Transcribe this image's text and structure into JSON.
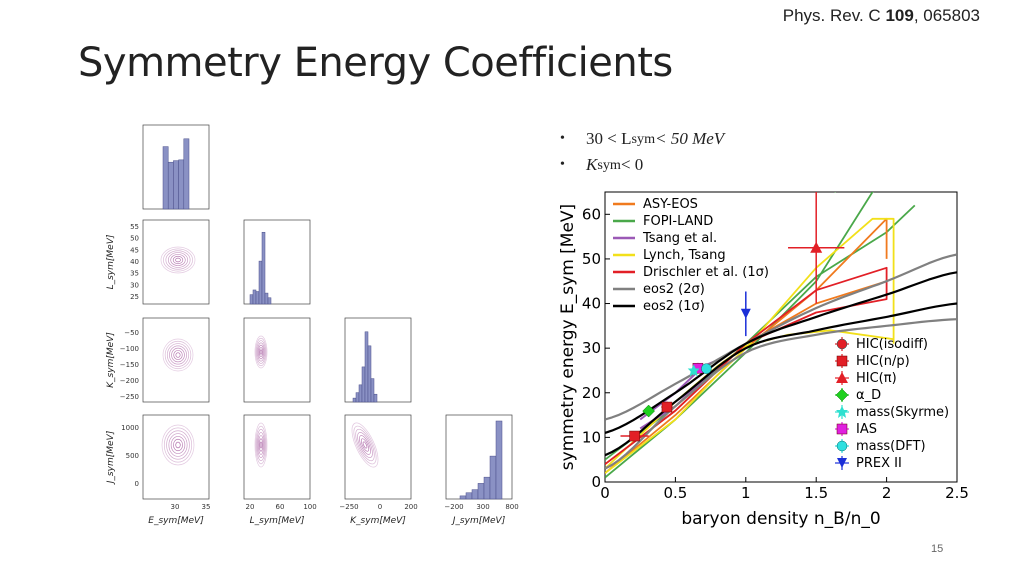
{
  "header": {
    "journal": "Phys. Rev. C",
    "volume": "109",
    "article": ", 065803",
    "title": "Symmetry Energy Coefficients",
    "page_number": "15"
  },
  "bullets": [
    {
      "prefix": "30 <",
      "sym": "L",
      "sub": "sym",
      "suffix": "< 50 MeV"
    },
    {
      "prefix": "",
      "sym": "K",
      "sub": "sym",
      "suffix": " < 0"
    }
  ],
  "corner_plot": {
    "color_fill": "#8a91c4",
    "color_contour": "#a1519a",
    "labels": {
      "esym": "E_sym[MeV]",
      "lsym": "L_sym[MeV]",
      "ksym": "K_sym[MeV]",
      "jsym": "J_sym[MeV]"
    },
    "ticks": {
      "esym_x": [
        "30",
        "35"
      ],
      "lsym_x": [
        "20",
        "60",
        "100"
      ],
      "ksym_x": [
        "−250",
        "0",
        "200"
      ],
      "jsym_x": [
        "−200",
        "300",
        "800"
      ],
      "lsym_y": [
        "55",
        "50",
        "45",
        "40",
        "35",
        "30",
        "25"
      ],
      "ksym_y": [
        "−50",
        "−100",
        "−150",
        "−200",
        "−250"
      ],
      "jsym_y": [
        "1000",
        "500",
        "0"
      ]
    },
    "hist_esym": [
      0.8,
      0.6,
      0.62,
      0.63,
      0.9
    ],
    "hist_lsym": [
      0.12,
      0.18,
      0.16,
      0.55,
      0.92,
      0.14,
      0.08
    ],
    "hist_ksym": [
      0.05,
      0.12,
      0.22,
      0.45,
      0.9,
      0.72,
      0.3,
      0.1
    ],
    "hist_jsym": [
      0.04,
      0.08,
      0.12,
      0.2,
      0.28,
      0.55,
      1.0
    ]
  },
  "chart_data": {
    "type": "line",
    "xlabel": "baryon density n_B/n_0",
    "ylabel": "symmetry energy E_sym [MeV]",
    "xlim": [
      0,
      2.5
    ],
    "ylim": [
      0,
      65
    ],
    "xticks": [
      "0",
      "0.5",
      "1",
      "1.5",
      "2",
      "2.5"
    ],
    "yticks": [
      "0",
      "10",
      "20",
      "30",
      "40",
      "50",
      "60"
    ],
    "legend_lines": [
      {
        "name": "ASY-EOS",
        "color": "#f07a1e"
      },
      {
        "name": "FOPI-LAND",
        "color": "#4aa84a"
      },
      {
        "name": "Tsang et al.",
        "color": "#9b59b6"
      },
      {
        "name": "Lynch, Tsang",
        "color": "#f2e01a"
      },
      {
        "name": "Drischler et al. (1σ)",
        "color": "#e21f26"
      },
      {
        "name": "eos2 (2σ)",
        "color": "#808080"
      },
      {
        "name": "eos2 (1σ)",
        "color": "#000000"
      }
    ],
    "legend_points": [
      {
        "name": "HIC(isodiff)",
        "color": "#e21f26",
        "marker": "circle"
      },
      {
        "name": "HIC(n/p)",
        "color": "#e21f26",
        "marker": "square"
      },
      {
        "name": "HIC(π)",
        "color": "#e21f26",
        "marker": "triangle"
      },
      {
        "name": "α_D",
        "color": "#1fd01f",
        "marker": "diamond"
      },
      {
        "name": "mass(Skyrme)",
        "color": "#2ee0d0",
        "marker": "star"
      },
      {
        "name": "IAS",
        "color": "#e020e0",
        "marker": "square"
      },
      {
        "name": "mass(DFT)",
        "color": "#2ee0e0",
        "marker": "circle"
      },
      {
        "name": "PREX II",
        "color": "#1b2fd8",
        "marker": "down-triangle"
      }
    ],
    "points": [
      {
        "name": "HIC(n/p)",
        "x": 0.21,
        "y": 10.3,
        "xerr": 0.1,
        "yerr": 1.0
      },
      {
        "name": "HIC(n/p)",
        "x": 0.44,
        "y": 16.8,
        "xerr": 0.04,
        "yerr": 1.2
      },
      {
        "name": "α_D",
        "x": 0.31,
        "y": 15.9,
        "xerr": 0.0,
        "yerr": 1.0
      },
      {
        "name": "IAS",
        "x": 0.66,
        "y": 25.5,
        "xerr": 0.04,
        "yerr": 1.2
      },
      {
        "name": "mass(Skyrme)",
        "x": 0.63,
        "y": 25.0,
        "xerr": 0.0,
        "yerr": 1.0
      },
      {
        "name": "mass(DFT)",
        "x": 0.72,
        "y": 25.4,
        "xerr": 0.0,
        "yerr": 1.0
      },
      {
        "name": "PREX II",
        "x": 1.0,
        "y": 37.7,
        "xerr": 0.0,
        "yerr": 5.0
      },
      {
        "name": "HIC(π)",
        "x": 1.5,
        "y": 52.5,
        "xerr": 0.2,
        "yerr": 12.5
      }
    ],
    "bands": [
      {
        "name": "eos2 (2σ) upper",
        "color": "#808080",
        "x": [
          0,
          0.5,
          1,
          1.5,
          2,
          2.5
        ],
        "y": [
          14,
          22,
          31,
          39,
          45,
          51
        ]
      },
      {
        "name": "eos2 (2σ) lower",
        "color": "#808080",
        "x": [
          0,
          0.5,
          1,
          1.5,
          2,
          2.5
        ],
        "y": [
          3,
          17,
          29,
          33,
          35,
          36.5
        ]
      },
      {
        "name": "eos2 (1σ) upper",
        "color": "#000000",
        "x": [
          0,
          0.5,
          1,
          1.5,
          2,
          2.5
        ],
        "y": [
          11,
          20,
          31,
          37,
          42,
          47
        ]
      },
      {
        "name": "eos2 (1σ) lower",
        "color": "#000000",
        "x": [
          0,
          0.5,
          1,
          1.5,
          2,
          2.5
        ],
        "y": [
          6,
          18,
          30,
          34,
          37,
          40
        ]
      }
    ]
  }
}
